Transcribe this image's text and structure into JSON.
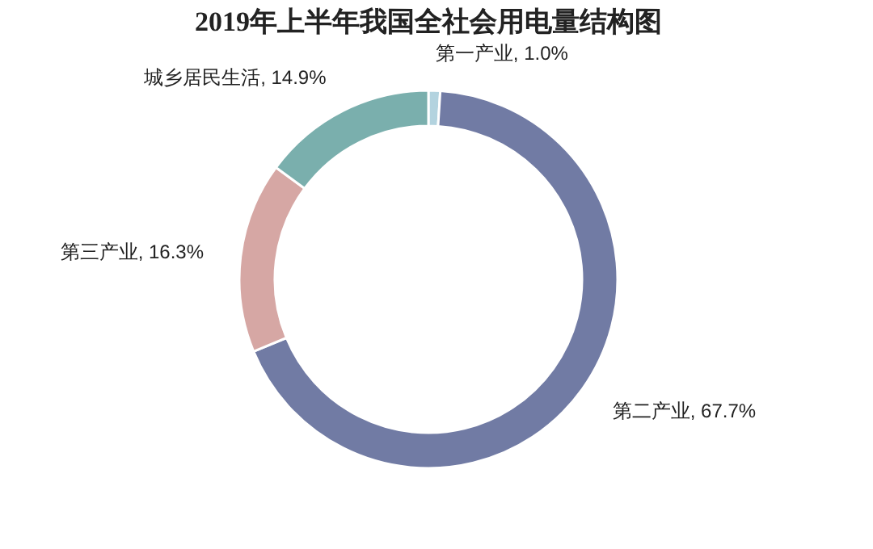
{
  "chart_data": {
    "type": "donut",
    "title": "2019年上半年我国全社会用电量结构图",
    "categories": [
      "第一产业",
      "第二产业",
      "第三产业",
      "城乡居民生活"
    ],
    "values": [
      1.0,
      67.7,
      16.3,
      14.9
    ],
    "colors": [
      "#b3d3df",
      "#717ba4",
      "#d6a7a4",
      "#7aafad"
    ],
    "value_labels": [
      "1.0%",
      "67.7%",
      "16.3%",
      "14.9%"
    ],
    "legend": false
  }
}
